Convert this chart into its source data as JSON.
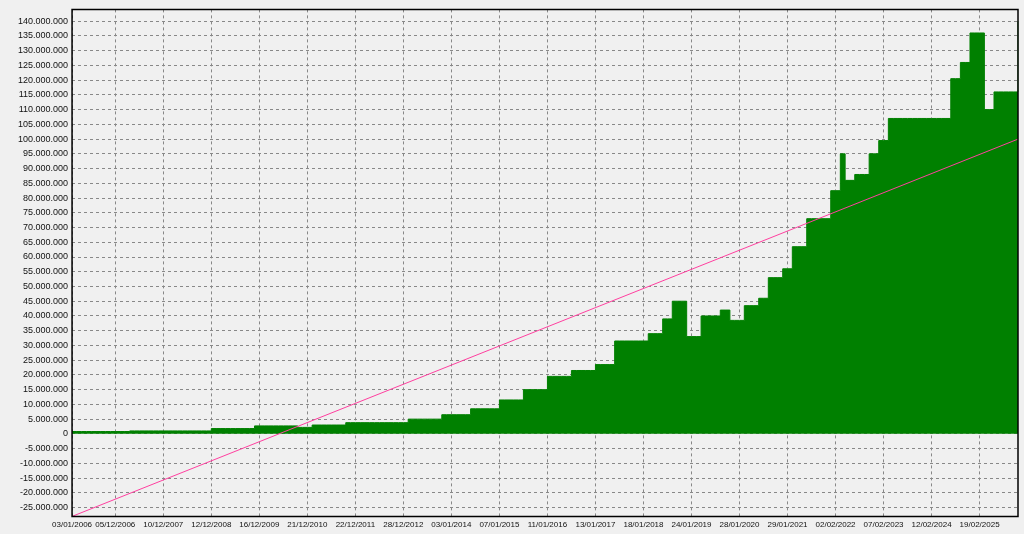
{
  "chart_data": {
    "type": "area",
    "categories": [
      "03/01/2006",
      null,
      null,
      null,
      null,
      null,
      null,
      null,
      null,
      "05/12/2006",
      null,
      null,
      null,
      null,
      null,
      null,
      null,
      null,
      null,
      "10/12/2007",
      null,
      null,
      null,
      null,
      null,
      null,
      null,
      null,
      null,
      "12/12/2008",
      null,
      null,
      null,
      null,
      null,
      null,
      null,
      null,
      null,
      "16/12/2009",
      null,
      null,
      null,
      null,
      null,
      null,
      null,
      null,
      null,
      "21/12/2010",
      null,
      null,
      null,
      null,
      null,
      null,
      null,
      null,
      null,
      "22/12/2011",
      null,
      null,
      null,
      null,
      null,
      null,
      null,
      null,
      null,
      "28/12/2012",
      null,
      null,
      null,
      null,
      null,
      null,
      null,
      null,
      null,
      "03/01/2014",
      null,
      null,
      null,
      null,
      null,
      null,
      null,
      null,
      null,
      "07/01/2015",
      null,
      null,
      null,
      null,
      null,
      null,
      null,
      null,
      null,
      "11/01/2016",
      null,
      null,
      null,
      null,
      null,
      null,
      null,
      null,
      null,
      "13/01/2017",
      null,
      null,
      null,
      null,
      null,
      null,
      null,
      null,
      null,
      "18/01/2018",
      null,
      null,
      null,
      null,
      null,
      null,
      null,
      null,
      null,
      "24/01/2019",
      null,
      null,
      null,
      null,
      null,
      null,
      null,
      null,
      null,
      "28/01/2020",
      null,
      null,
      null,
      null,
      null,
      null,
      null,
      null,
      null,
      "29/01/2021",
      null,
      null,
      null,
      null,
      null,
      null,
      null,
      null,
      null,
      "02/02/2022",
      null,
      null,
      null,
      null,
      null,
      null,
      null,
      null,
      null,
      "07/02/2023",
      null,
      null,
      null,
      null,
      null,
      null,
      null,
      null,
      null,
      "12/02/2024",
      null,
      null,
      null,
      null,
      null,
      null,
      null,
      null,
      null,
      "19/02/2025",
      null,
      null,
      null,
      null,
      null,
      null,
      null,
      null
    ],
    "series": [
      {
        "type": "area",
        "color": "#008000",
        "values": [
          800000,
          800000,
          800000,
          800000,
          800000,
          800000,
          800000,
          800000,
          800000,
          800000,
          800000,
          800000,
          1000000,
          1000000,
          1000000,
          1000000,
          1000000,
          1000000,
          1000000,
          1000000,
          1000000,
          1000000,
          1000000,
          1000000,
          1000000,
          1000000,
          1000000,
          1000000,
          1000000,
          1800000,
          1800000,
          1800000,
          1800000,
          1800000,
          1800000,
          1800000,
          1800000,
          1800000,
          2700000,
          2700000,
          2700000,
          2700000,
          2700000,
          2700000,
          2700000,
          2700000,
          2700000,
          2200000,
          2200000,
          2200000,
          3000000,
          3000000,
          3000000,
          3000000,
          3000000,
          3000000,
          3000000,
          3800000,
          3800000,
          3800000,
          3800000,
          3800000,
          3800000,
          3800000,
          3800000,
          3800000,
          3800000,
          3800000,
          3800000,
          3800000,
          5000000,
          5000000,
          5000000,
          5000000,
          5000000,
          5000000,
          5000000,
          6500000,
          6500000,
          6500000,
          6500000,
          6500000,
          6500000,
          8500000,
          8500000,
          8500000,
          8500000,
          8500000,
          8500000,
          11500000,
          11500000,
          11500000,
          11500000,
          11500000,
          15000000,
          15000000,
          15000000,
          15000000,
          15000000,
          19500000,
          19500000,
          19500000,
          19500000,
          19500000,
          21500000,
          21500000,
          21500000,
          21500000,
          21500000,
          23500000,
          23500000,
          23500000,
          23500000,
          31500000,
          31500000,
          31500000,
          31500000,
          31500000,
          31500000,
          31500000,
          34000000,
          34000000,
          34000000,
          39000000,
          39000000,
          45000000,
          45000000,
          45000000,
          33000000,
          33000000,
          33000000,
          40000000,
          40000000,
          40000000,
          40000000,
          42000000,
          42000000,
          38500000,
          38500000,
          38500000,
          43500000,
          43500000,
          43500000,
          46000000,
          46000000,
          53000000,
          53000000,
          53000000,
          56000000,
          56000000,
          63500000,
          63500000,
          63500000,
          73000000,
          73000000,
          73000000,
          73000000,
          73000000,
          82500000,
          82500000,
          95000000,
          86000000,
          86000000,
          88000000,
          88000000,
          88000000,
          95000000,
          95000000,
          99500000,
          99500000,
          107000000,
          107000000,
          107000000,
          107000000,
          107000000,
          107000000,
          107000000,
          107000000,
          107000000,
          107000000,
          107000000,
          107000000,
          107000000,
          120500000,
          120500000,
          126000000,
          126000000,
          136000000,
          136000000,
          136000000,
          110000000,
          110000000,
          116000000,
          116000000,
          116000000,
          116000000,
          116000000,
          140000000
        ]
      },
      {
        "type": "line",
        "color": "#ff3f9f",
        "values": [
          -28000000,
          null,
          null,
          null,
          null,
          null,
          null,
          null,
          null,
          null,
          null,
          null,
          null,
          null,
          null,
          null,
          null,
          null,
          null,
          null,
          null,
          null,
          null,
          null,
          null,
          null,
          null,
          null,
          null,
          null,
          null,
          null,
          null,
          null,
          null,
          null,
          null,
          null,
          null,
          null,
          null,
          null,
          null,
          null,
          null,
          null,
          null,
          null,
          null,
          null,
          null,
          null,
          null,
          null,
          null,
          null,
          null,
          null,
          null,
          null,
          null,
          null,
          null,
          null,
          null,
          null,
          null,
          null,
          null,
          null,
          null,
          null,
          null,
          null,
          null,
          null,
          null,
          null,
          null,
          null,
          null,
          null,
          null,
          null,
          null,
          null,
          null,
          null,
          null,
          null,
          null,
          null,
          null,
          null,
          null,
          null,
          null,
          null,
          null,
          null,
          null,
          null,
          null,
          null,
          null,
          null,
          null,
          null,
          null,
          null,
          null,
          null,
          null,
          null,
          null,
          null,
          null,
          null,
          null,
          null,
          null,
          null,
          null,
          null,
          null,
          null,
          null,
          null,
          null,
          null,
          null,
          null,
          null,
          null,
          null,
          null,
          null,
          null,
          null,
          null,
          null,
          null,
          null,
          null,
          null,
          null,
          null,
          null,
          null,
          null,
          null,
          null,
          null,
          null,
          null,
          null,
          null,
          null,
          null,
          null,
          null,
          null,
          null,
          null,
          null,
          null,
          null,
          null,
          null,
          null,
          null,
          null,
          null,
          null,
          null,
          null,
          null,
          null,
          null,
          null,
          null,
          null,
          null,
          null,
          null,
          null,
          null,
          null,
          null,
          null,
          null,
          null,
          null,
          null,
          null,
          null,
          null,
          100000000
        ]
      }
    ],
    "ylim": [
      -28000000,
      144000000
    ],
    "yticks": [
      {
        "value": -25000000,
        "label": "-25.000.000"
      },
      {
        "value": -20000000,
        "label": "-20.000.000"
      },
      {
        "value": -15000000,
        "label": "-15.000.000"
      },
      {
        "value": -10000000,
        "label": "-10.000.000"
      },
      {
        "value": -5000000,
        "label": "-5.000.000"
      },
      0,
      {
        "value": 5000000,
        "label": "5.000.000"
      },
      {
        "value": 10000000,
        "label": "10.000.000"
      },
      {
        "value": 15000000,
        "label": "15.000.000"
      },
      {
        "value": 20000000,
        "label": "20.000.000"
      },
      {
        "value": 25000000,
        "label": "25.000.000"
      },
      {
        "value": 30000000,
        "label": "30.000.000"
      },
      {
        "value": 35000000,
        "label": "35.000.000"
      },
      {
        "value": 40000000,
        "label": "40.000.000"
      },
      {
        "value": 45000000,
        "label": "45.000.000"
      },
      {
        "value": 50000000,
        "label": "50.000.000"
      },
      {
        "value": 55000000,
        "label": "55.000.000"
      },
      {
        "value": 60000000,
        "label": "60.000.000"
      },
      {
        "value": 65000000,
        "label": "65.000.000"
      },
      {
        "value": 70000000,
        "label": "70.000.000"
      },
      {
        "value": 75000000,
        "label": "75.000.000"
      },
      {
        "value": 80000000,
        "label": "80.000.000"
      },
      {
        "value": 85000000,
        "label": "85.000.000"
      },
      {
        "value": 90000000,
        "label": "90.000.000"
      },
      {
        "value": 95000000,
        "label": "95.000.000"
      },
      {
        "value": 100000000,
        "label": "100.000.000"
      },
      {
        "value": 105000000,
        "label": "105.000.000"
      },
      {
        "value": 110000000,
        "label": "110.000.000"
      },
      {
        "value": 115000000,
        "label": "115.000.000"
      },
      {
        "value": 120000000,
        "label": "120.000.000"
      },
      {
        "value": 125000000,
        "label": "125.000.000"
      },
      {
        "value": 130000000,
        "label": "130.000.000"
      },
      {
        "value": 135000000,
        "label": "135.000.000"
      },
      {
        "value": 140000000,
        "label": "140.000.000"
      }
    ],
    "grid": true,
    "marker": "none"
  }
}
